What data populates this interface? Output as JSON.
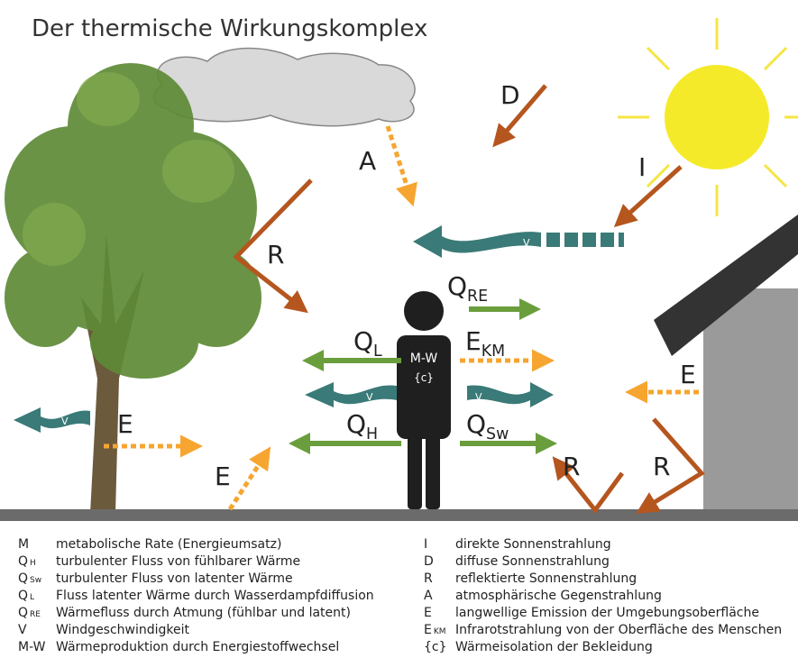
{
  "title": "Der thermische Wirkungskomplex",
  "diagram_labels": [
    {
      "text": "A"
    },
    {
      "text": "D"
    },
    {
      "text": "I"
    },
    {
      "text": "R"
    },
    {
      "text": "Q",
      "sub": "RE"
    },
    {
      "text": "Q",
      "sub": "L"
    },
    {
      "text": "E",
      "sub": "KM"
    },
    {
      "text": "Q",
      "sub": "H"
    },
    {
      "text": "Q",
      "sub": "Sw"
    },
    {
      "text": "E"
    },
    {
      "text": "E"
    },
    {
      "text": "E"
    },
    {
      "text": "R"
    },
    {
      "text": "R"
    },
    {
      "text": "M-W"
    },
    {
      "text": "{c}"
    },
    {
      "text": "V"
    },
    {
      "text": "V"
    },
    {
      "text": "V"
    },
    {
      "text": "V"
    }
  ],
  "legend_left": [
    {
      "symbol": "M",
      "description": "metabolische Rate (Energieumsatz)"
    },
    {
      "symbol": "Q",
      "sub": "H",
      "description": "turbulenter Fluss von fühlbarer Wärme"
    },
    {
      "symbol": "Q",
      "sub": "Sw",
      "description": "turbulenter Fluss von latenter Wärme"
    },
    {
      "symbol": "Q",
      "sub": "L",
      "description": "Fluss latenter Wärme durch Wasserdampfdiffusion"
    },
    {
      "symbol": "Q",
      "sub": "RE",
      "description": "Wärmefluss durch Atmung (fühlbar und latent)"
    },
    {
      "symbol": "V",
      "description": "Windgeschwindigkeit"
    },
    {
      "symbol": "M-W",
      "description": "Wärmeproduktion durch Energiestoffwechsel"
    }
  ],
  "legend_right": [
    {
      "symbol": "I",
      "description": "direkte Sonnenstrahlung"
    },
    {
      "symbol": "D",
      "description": "diffuse Sonnenstrahlung"
    },
    {
      "symbol": "R",
      "description": "reflektierte Sonnenstrahlung"
    },
    {
      "symbol": "A",
      "description": "atmosphärische Gegenstrahlung"
    },
    {
      "symbol": "E",
      "description": "langwellige Emission der Umgebungsoberfläche"
    },
    {
      "symbol": "E",
      "sub": "KM",
      "description": "Infrarotstrahlung von der Oberfläche des Menschen"
    },
    {
      "symbol": "{c}",
      "description": "Wärmeisolation der Bekleidung"
    }
  ]
}
